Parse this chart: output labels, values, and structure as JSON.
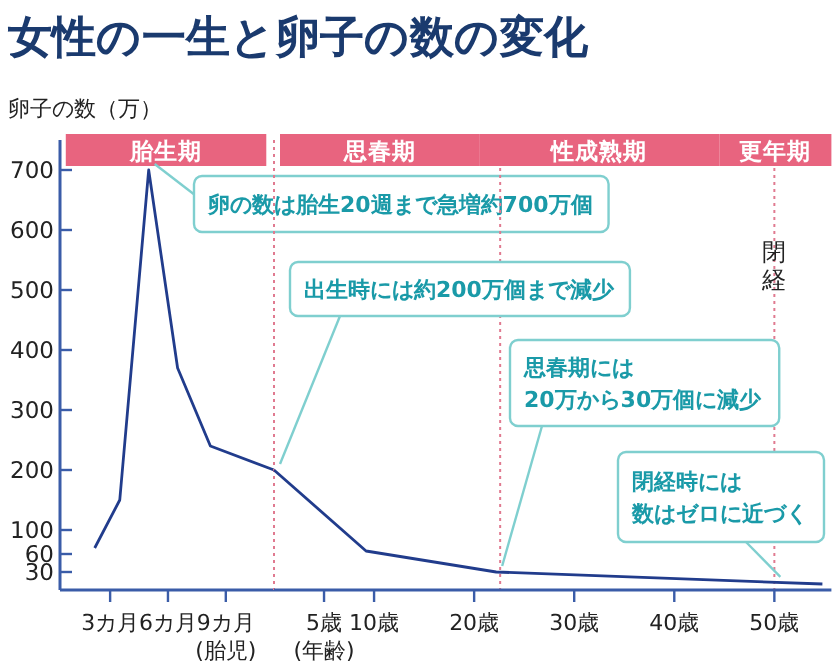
{
  "chart_data": [
    {
      "type": "line",
      "title": "女性の一生と卵子の数の変化",
      "ylabel": "卵子の数（万）",
      "x": [
        2.2,
        3.5,
        5.0,
        6.5,
        8.2,
        11.5
      ],
      "series": [
        {
          "color": "#213c8c",
          "values": [
            70,
            150,
            700,
            370,
            240,
            200
          ]
        }
      ],
      "xlim": [
        0.4,
        11.5
      ],
      "xticks": [
        {
          "value": 3,
          "label": "3カ月"
        },
        {
          "value": 6,
          "label": "6カ月"
        },
        {
          "value": 9,
          "label": "9カ月\n(胎児)"
        }
      ],
      "ylim": [
        0,
        750
      ],
      "yticks": [
        30,
        60,
        100,
        200,
        300,
        400,
        500,
        600,
        700
      ],
      "bands": [
        {
          "axis": "x",
          "from": 0.7,
          "to": 11.1,
          "label": "胎生期",
          "color": "#e8647f"
        }
      ],
      "annotations": [
        {
          "text": "卵の数は胎生20週まで急増約700万個",
          "x": 5.0,
          "y": 700
        }
      ],
      "marker": "none",
      "line_style": "solid"
    },
    {
      "type": "line",
      "x": [
        0,
        9.2,
        22.2,
        54.8
      ],
      "series": [
        {
          "color": "#213c8c",
          "values": [
            200,
            65,
            30,
            10
          ]
        }
      ],
      "xlim": [
        0,
        55.7
      ],
      "xticks": [
        {
          "value": 5,
          "label": "5歳\n(年齢)"
        },
        {
          "value": 10,
          "label": "10歳"
        },
        {
          "value": 20,
          "label": "20歳"
        },
        {
          "value": 30,
          "label": "30歳"
        },
        {
          "value": 40,
          "label": "40歳"
        },
        {
          "value": 50,
          "label": "50歳"
        }
      ],
      "ylim": [
        0,
        750
      ],
      "tick_labels": "x",
      "ref_lines": [
        {
          "axis": "x",
          "value": 0,
          "color": "#e07a90",
          "line_style": "dotted"
        },
        {
          "axis": "x",
          "value": 22.6,
          "color": "#e07a90",
          "line_style": "dotted"
        },
        {
          "axis": "x",
          "value": 50,
          "label": "閉経",
          "color": "#e07a90",
          "line_style": "dotted"
        }
      ],
      "bands": [
        {
          "axis": "x",
          "from": 0.6,
          "to": 20.5,
          "label": "思春期",
          "color": "#e8647f"
        },
        {
          "axis": "x",
          "from": 20.5,
          "to": 44.5,
          "label": "性成熟期",
          "color": "#e8647f"
        },
        {
          "axis": "x",
          "from": 44.5,
          "to": 55.7,
          "label": "更年期",
          "color": "#e8647f"
        }
      ],
      "annotations": [
        {
          "text": "出生時には約200万個まで減少",
          "x": 0,
          "y": 200
        },
        {
          "text": "思春期には20万から30万個に減少",
          "x": 22.2,
          "y": 30
        },
        {
          "text": "閉経時には数はゼロに近づく",
          "x": 50,
          "y": 12
        }
      ],
      "marker": "none",
      "line_style": "solid"
    }
  ]
}
